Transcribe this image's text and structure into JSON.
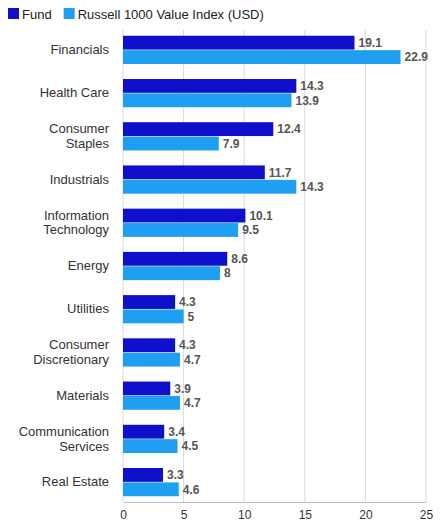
{
  "chart_data": {
    "type": "bar",
    "orientation": "horizontal",
    "categories": [
      "Financials",
      "Health Care",
      "Consumer Staples",
      "Industrials",
      "Information Technology",
      "Energy",
      "Utilities",
      "Consumer Discretionary",
      "Materials",
      "Communication Services",
      "Real Estate"
    ],
    "series": [
      {
        "name": "Fund",
        "color": "#0f0fcc",
        "values": [
          19.1,
          14.3,
          12.4,
          11.7,
          10.1,
          8.6,
          4.3,
          4.3,
          3.9,
          3.4,
          3.3
        ]
      },
      {
        "name": "Russell 1000 Value Index (USD)",
        "color": "#1e9ff2",
        "values": [
          22.9,
          13.9,
          7.9,
          14.3,
          9.5,
          8.0,
          5.0,
          4.7,
          4.7,
          4.5,
          4.6
        ]
      }
    ],
    "xlim": [
      0,
      25
    ],
    "xticks": [
      0,
      5,
      10,
      15,
      20,
      25
    ],
    "grid": true,
    "data_labels": true,
    "legend": "top-left"
  }
}
